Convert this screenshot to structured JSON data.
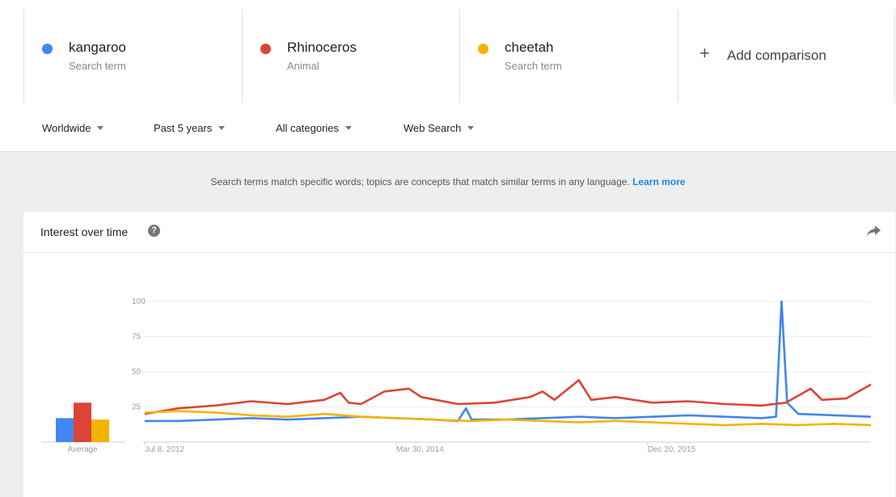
{
  "terms": [
    {
      "name": "kangaroo",
      "type": "Search term",
      "color": "#4285f4"
    },
    {
      "name": "Rhinoceros",
      "type": "Animal",
      "color": "#db4437"
    },
    {
      "name": "cheetah",
      "type": "Search term",
      "color": "#f4b400"
    }
  ],
  "add_comparison": {
    "icon": "plus-icon",
    "label": "Add comparison"
  },
  "filters": {
    "region": "Worldwide",
    "time": "Past 5 years",
    "category": "All categories",
    "search_type": "Web Search"
  },
  "notice": {
    "text": "Search terms match specific words; topics are concepts that match similar terms in any language.",
    "link": "Learn more"
  },
  "card": {
    "title": "Interest over time",
    "help_icon": "help-icon",
    "share_icon": "share-icon"
  },
  "chart_data": {
    "type": "line",
    "title": "Interest over time",
    "x_range": [
      "2012-07-08",
      "2017-07-02"
    ],
    "x_ticks": [
      "Jul 8, 2012",
      "Mar 30, 2014",
      "Dec 20, 2015"
    ],
    "y_ticks": [
      25,
      50,
      75,
      100
    ],
    "ylim": [
      0,
      100
    ],
    "grid": true,
    "average_label": "Average",
    "averages": [
      {
        "name": "kangaroo",
        "value": 17
      },
      {
        "name": "Rhinoceros",
        "value": 28
      },
      {
        "name": "cheetah",
        "value": 16
      }
    ],
    "series": [
      {
        "name": "kangaroo",
        "color": "#4285f4",
        "points": [
          [
            "2012-07-08",
            15
          ],
          [
            "2012-10-01",
            15
          ],
          [
            "2013-01-01",
            16
          ],
          [
            "2013-04-01",
            17
          ],
          [
            "2013-07-01",
            16
          ],
          [
            "2013-10-01",
            17
          ],
          [
            "2014-01-01",
            18
          ],
          [
            "2014-04-01",
            17
          ],
          [
            "2014-07-01",
            16
          ],
          [
            "2014-09-01",
            15
          ],
          [
            "2014-09-21",
            24
          ],
          [
            "2014-10-05",
            16
          ],
          [
            "2015-01-01",
            16
          ],
          [
            "2015-04-01",
            17
          ],
          [
            "2015-07-01",
            18
          ],
          [
            "2015-10-01",
            17
          ],
          [
            "2016-01-01",
            18
          ],
          [
            "2016-04-01",
            19
          ],
          [
            "2016-07-01",
            18
          ],
          [
            "2016-10-01",
            17
          ],
          [
            "2016-11-06",
            18
          ],
          [
            "2016-11-20",
            100
          ],
          [
            "2016-12-04",
            28
          ],
          [
            "2017-01-01",
            20
          ],
          [
            "2017-04-01",
            19
          ],
          [
            "2017-07-02",
            18
          ]
        ]
      },
      {
        "name": "Rhinoceros",
        "color": "#db4437",
        "points": [
          [
            "2012-07-08",
            20
          ],
          [
            "2012-10-01",
            24
          ],
          [
            "2013-01-01",
            26
          ],
          [
            "2013-04-01",
            29
          ],
          [
            "2013-07-01",
            27
          ],
          [
            "2013-10-01",
            30
          ],
          [
            "2013-11-10",
            35
          ],
          [
            "2013-12-01",
            28
          ],
          [
            "2014-01-01",
            27
          ],
          [
            "2014-03-01",
            36
          ],
          [
            "2014-05-01",
            38
          ],
          [
            "2014-06-01",
            32
          ],
          [
            "2014-09-01",
            27
          ],
          [
            "2014-12-01",
            28
          ],
          [
            "2015-03-01",
            32
          ],
          [
            "2015-04-01",
            36
          ],
          [
            "2015-05-01",
            30
          ],
          [
            "2015-07-01",
            44
          ],
          [
            "2015-08-01",
            30
          ],
          [
            "2015-10-01",
            32
          ],
          [
            "2016-01-01",
            28
          ],
          [
            "2016-04-01",
            29
          ],
          [
            "2016-07-01",
            27
          ],
          [
            "2016-10-01",
            26
          ],
          [
            "2016-12-01",
            28
          ],
          [
            "2017-02-01",
            38
          ],
          [
            "2017-03-01",
            30
          ],
          [
            "2017-05-01",
            31
          ],
          [
            "2017-07-02",
            41
          ]
        ]
      },
      {
        "name": "cheetah",
        "color": "#f4b400",
        "points": [
          [
            "2012-07-08",
            21
          ],
          [
            "2012-10-01",
            22
          ],
          [
            "2013-01-01",
            21
          ],
          [
            "2013-04-01",
            19
          ],
          [
            "2013-07-01",
            18
          ],
          [
            "2013-10-01",
            20
          ],
          [
            "2014-01-01",
            18
          ],
          [
            "2014-04-01",
            17
          ],
          [
            "2014-07-01",
            16
          ],
          [
            "2014-10-01",
            15
          ],
          [
            "2015-01-01",
            16
          ],
          [
            "2015-04-01",
            15
          ],
          [
            "2015-07-01",
            14
          ],
          [
            "2015-10-01",
            15
          ],
          [
            "2016-01-01",
            14
          ],
          [
            "2016-04-01",
            13
          ],
          [
            "2016-07-01",
            12
          ],
          [
            "2016-10-01",
            13
          ],
          [
            "2017-01-01",
            12
          ],
          [
            "2017-04-01",
            13
          ],
          [
            "2017-07-02",
            12
          ]
        ]
      }
    ]
  }
}
